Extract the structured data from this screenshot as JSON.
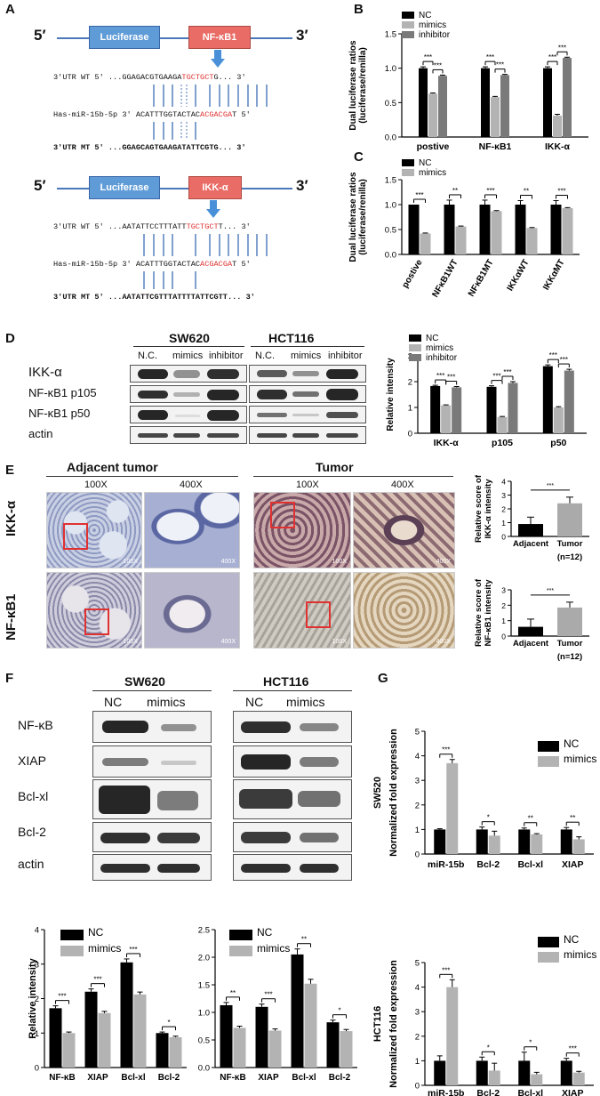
{
  "panels": {
    "A": "A",
    "B": "B",
    "C": "C",
    "D": "D",
    "E": "E",
    "F": "F",
    "G": "G"
  },
  "panelA": {
    "five": "5′",
    "three": "3′",
    "luc": "Luciferase",
    "gene1": "NF-κB1",
    "gene2": "IKK-α",
    "s1_wt_pre": "3'UTR WT 5'  ...GGAGACGTGAAGA",
    "s1_wt_red": "TGCTGCT",
    "s1_wt_post": "G...  3'",
    "s1_mir_pre": "Has-miR-15b-5p  3'      ACATTTGGTACTAC",
    "s1_mir_red": "ACGACGA",
    "s1_mir_post": "T     5'",
    "s1_mt": "3'UTR  MT  5'  ...GGAGCAGTGAAGATATTCGTG...  3'",
    "s2_wt_pre": "3'UTR WT 5'  ...AATATTCCTTTATT",
    "s2_wt_red": "TGCTGCT",
    "s2_wt_post": "T...  3'",
    "s2_mir_pre": "Has-miR-15b-5p  3'      ACATTTGGTACTAC",
    "s2_mir_red": "ACGACGA",
    "s2_mir_post": "T     5'",
    "s2_mt": "3'UTR  MT  5'  ...AATATTCGTTTATTTTATTCGTT...  3'"
  },
  "panelD": {
    "sw620": "SW620",
    "hct116": "HCT116",
    "cols": [
      "N.C.",
      "mimics",
      "inhibitor"
    ],
    "rows": [
      "IKK-α",
      "NF-κB1 p105",
      "NF-κB1 p50",
      "actin"
    ]
  },
  "panelE": {
    "adjacent": "Adjacent tumor",
    "tumor": "Tumor",
    "mag": [
      "100X",
      "400X",
      "100X",
      "400X"
    ],
    "rows": [
      "IKK-α",
      "NF-κB1"
    ],
    "scalebars": [
      "100X",
      "400X",
      "100X",
      "400X",
      "100X",
      "400X",
      "100X",
      "400X"
    ]
  },
  "panelF": {
    "sw620": "SW620",
    "hct116": "HCT116",
    "cols": [
      "NC",
      "mimics"
    ],
    "rows": [
      "NF-κB",
      "XIAP",
      "Bcl-xl",
      "Bcl-2",
      "actin"
    ]
  },
  "chart_data": [
    {
      "id": "B",
      "type": "bar",
      "ylabel": "Dual luciferase ratios\n(luciferase/renilla)",
      "ylim": [
        0,
        1.5
      ],
      "yticks": [
        "0.0",
        "0.5",
        "1.0",
        "1.5"
      ],
      "categories": [
        "postive",
        "NF-κB1",
        "IKK-α"
      ],
      "series": [
        {
          "name": "NC",
          "color": "#000000",
          "values": [
            1.0,
            1.0,
            1.0
          ],
          "err": [
            0.02,
            0.02,
            0.02
          ]
        },
        {
          "name": "mimics",
          "color": "#b3b3b3",
          "values": [
            0.63,
            0.58,
            0.31
          ],
          "err": [
            0.01,
            0.01,
            0.02
          ]
        },
        {
          "name": "inhibitor",
          "color": "#7a7a7a",
          "values": [
            0.89,
            0.9,
            1.15
          ],
          "err": [
            0.01,
            0.01,
            0.01
          ]
        }
      ],
      "sig": [
        "***",
        "***",
        "***",
        "***",
        "***",
        "***"
      ]
    },
    {
      "id": "C",
      "type": "bar",
      "ylabel": "Dual luciferase ratios\n(luciferase/renilla)",
      "ylim": [
        0,
        1.5
      ],
      "yticks": [
        "0.0",
        "0.5",
        "1.0",
        "1.5"
      ],
      "categories": [
        "postive",
        "NFκB1WT",
        "NFκB1MT",
        "IKKαWT",
        "IKKαMT"
      ],
      "series": [
        {
          "name": "NC",
          "color": "#000000",
          "values": [
            1.0,
            1.0,
            1.0,
            1.0,
            1.0
          ],
          "err": [
            0,
            0.09,
            0.09,
            0.08,
            0.08
          ]
        },
        {
          "name": "mimics",
          "color": "#b3b3b3",
          "values": [
            0.42,
            0.56,
            0.87,
            0.53,
            0.93
          ],
          "err": [
            0.01,
            0.01,
            0.01,
            0.01,
            0.01
          ]
        }
      ],
      "sig": [
        "***",
        "**",
        "***",
        "**",
        "***"
      ]
    },
    {
      "id": "D",
      "type": "bar",
      "ylabel": "Relative intensity",
      "ylim": [
        0,
        3
      ],
      "yticks": [
        "0",
        "1",
        "2",
        "3"
      ],
      "categories": [
        "IKK-α",
        "p105",
        "p50"
      ],
      "series": [
        {
          "name": "NC",
          "color": "#000000",
          "values": [
            1.83,
            1.8,
            2.6
          ],
          "err": [
            0.03,
            0.04,
            0.05
          ]
        },
        {
          "name": "mimics",
          "color": "#b3b3b3",
          "values": [
            1.08,
            0.63,
            1.0
          ],
          "err": [
            0.02,
            0.02,
            0.03
          ]
        },
        {
          "name": "inhibitor",
          "color": "#7a7a7a",
          "values": [
            1.78,
            1.95,
            2.43
          ],
          "err": [
            0.03,
            0.05,
            0.05
          ]
        }
      ],
      "sig": [
        "***",
        "***",
        "***",
        "***",
        "***",
        "***"
      ]
    },
    {
      "id": "E1",
      "type": "bar",
      "ylabel": "Relative score of\nIKK-α intensity",
      "ylim": [
        0,
        4
      ],
      "yticks": [
        "0",
        "1",
        "2",
        "3",
        "4"
      ],
      "categories": [
        "Adjacent",
        "Tumor"
      ],
      "note": "(n=12)",
      "series": [
        {
          "name": "score",
          "values": [
            0.9,
            2.4
          ],
          "err": [
            0.5,
            0.45
          ],
          "colors": [
            "#000000",
            "#aaaaaa"
          ]
        }
      ],
      "sig": [
        "***"
      ]
    },
    {
      "id": "E2",
      "type": "bar",
      "ylabel": "Relative score of\nNF-κB1 intensity",
      "ylim": [
        0,
        3
      ],
      "yticks": [
        "0",
        "1",
        "2",
        "3"
      ],
      "categories": [
        "Adjacent",
        "Tumor"
      ],
      "note": "(n=12)",
      "series": [
        {
          "name": "score",
          "values": [
            0.6,
            1.85
          ],
          "err": [
            0.5,
            0.35
          ],
          "colors": [
            "#000000",
            "#aaaaaa"
          ]
        }
      ],
      "sig": [
        "***"
      ]
    },
    {
      "id": "F1",
      "type": "bar",
      "ylabel": "Relative intensity",
      "ylim": [
        0,
        4
      ],
      "yticks": [
        "0",
        "1",
        "2",
        "3",
        "4"
      ],
      "categories": [
        "NF-κB",
        "XIAP",
        "Bcl-xl",
        "Bcl-2"
      ],
      "series": [
        {
          "name": "NC",
          "color": "#000000",
          "values": [
            1.72,
            2.2,
            3.05,
            1.0
          ],
          "err": [
            0.07,
            0.08,
            0.1,
            0.03
          ]
        },
        {
          "name": "mimics",
          "color": "#b3b3b3",
          "values": [
            1.0,
            1.58,
            2.12,
            0.88
          ],
          "err": [
            0.03,
            0.05,
            0.07,
            0.03
          ]
        }
      ],
      "sig": [
        "***",
        "***",
        "***",
        "*"
      ]
    },
    {
      "id": "F2",
      "type": "bar",
      "ylabel": "",
      "ylim": [
        0,
        2.5
      ],
      "yticks": [
        "0.0",
        "0.5",
        "1.0",
        "1.5",
        "2.0",
        "2.5"
      ],
      "categories": [
        "NF-κB",
        "XIAP",
        "Bcl-xl",
        "Bcl-2"
      ],
      "series": [
        {
          "name": "NC",
          "color": "#000000",
          "values": [
            1.13,
            1.1,
            2.05,
            0.82
          ],
          "err": [
            0.05,
            0.05,
            0.1,
            0.04
          ]
        },
        {
          "name": "mimics",
          "color": "#b3b3b3",
          "values": [
            0.72,
            0.67,
            1.52,
            0.66
          ],
          "err": [
            0.03,
            0.03,
            0.08,
            0.03
          ]
        }
      ],
      "sig": [
        "**",
        "***",
        "**",
        "*"
      ]
    },
    {
      "id": "G1",
      "type": "bar",
      "ylabel": "Normalized fold expression",
      "title_left": "SW520",
      "ylim": [
        0,
        5
      ],
      "yticks": [
        "0",
        "1",
        "2",
        "3",
        "4",
        "5"
      ],
      "categories": [
        "miR-15b",
        "Bcl-2",
        "Bcl-xl",
        "XIAP"
      ],
      "series": [
        {
          "name": "NC",
          "color": "#000000",
          "values": [
            1.0,
            1.0,
            1.0,
            1.0
          ],
          "err": [
            0.03,
            0.1,
            0.06,
            0.08
          ]
        },
        {
          "name": "mimics",
          "color": "#b3b3b3",
          "values": [
            3.7,
            0.75,
            0.8,
            0.6
          ],
          "err": [
            0.15,
            0.18,
            0.03,
            0.1
          ]
        }
      ],
      "sig": [
        "***",
        "*",
        "**",
        "**"
      ]
    },
    {
      "id": "G2",
      "type": "bar",
      "ylabel": "Normalized fold expression",
      "title_left": "HCT116",
      "ylim": [
        0,
        5
      ],
      "yticks": [
        "0",
        "1",
        "2",
        "3",
        "4",
        "5"
      ],
      "categories": [
        "miR-15b",
        "Bcl-2",
        "Bcl-xl",
        "XIAP"
      ],
      "series": [
        {
          "name": "NC",
          "color": "#000000",
          "values": [
            1.0,
            1.0,
            1.0,
            1.0
          ],
          "err": [
            0.2,
            0.15,
            0.35,
            0.1
          ]
        },
        {
          "name": "mimics",
          "color": "#b3b3b3",
          "values": [
            4.0,
            0.6,
            0.45,
            0.52
          ],
          "err": [
            0.3,
            0.3,
            0.08,
            0.05
          ]
        }
      ],
      "sig": [
        "***",
        "*",
        "*",
        "***"
      ]
    }
  ]
}
